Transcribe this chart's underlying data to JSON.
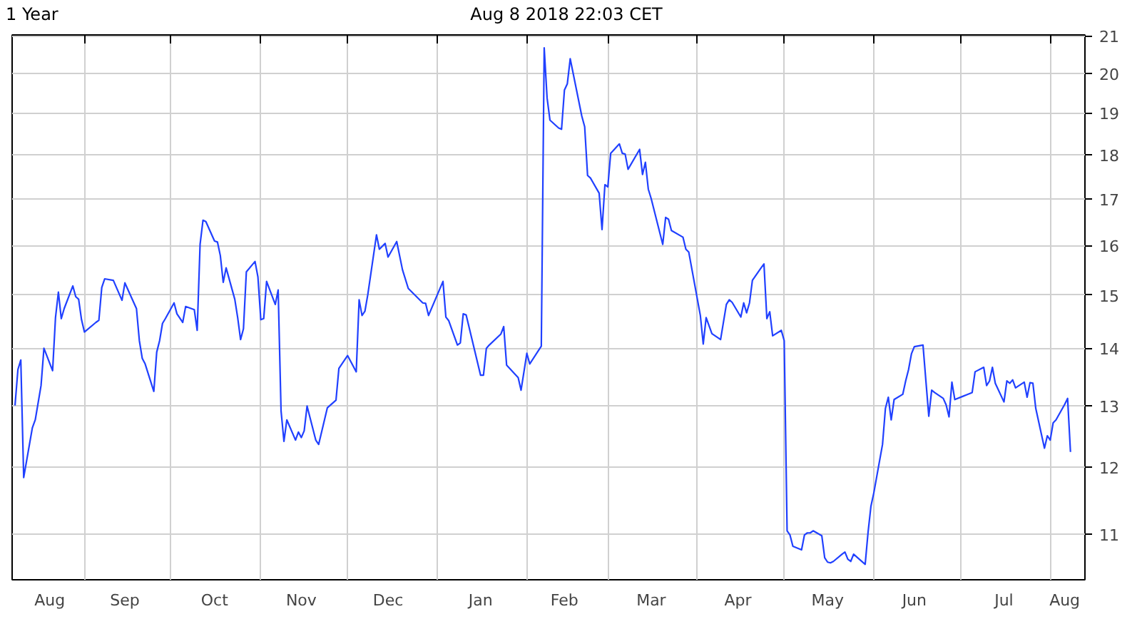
{
  "chart_data": {
    "type": "line",
    "title": "1 Year",
    "annotations": [
      "Aug 8 2018 22:03 CET"
    ],
    "x": [
      "2017-08-08",
      "2017-08-09",
      "2017-08-10",
      "2017-08-11",
      "2017-08-14",
      "2017-08-15",
      "2017-08-17",
      "2017-08-18",
      "2017-08-21",
      "2017-08-22",
      "2017-08-23",
      "2017-08-24",
      "2017-08-25",
      "2017-08-28",
      "2017-08-29",
      "2017-08-30",
      "2017-08-31",
      "2017-09-01",
      "2017-09-05",
      "2017-09-06",
      "2017-09-07",
      "2017-09-08",
      "2017-09-11",
      "2017-09-14",
      "2017-09-15",
      "2017-09-19",
      "2017-09-20",
      "2017-09-21",
      "2017-09-22",
      "2017-09-25",
      "2017-09-26",
      "2017-09-27",
      "2017-09-28",
      "2017-09-29",
      "2017-10-02",
      "2017-10-03",
      "2017-10-05",
      "2017-10-06",
      "2017-10-09",
      "2017-10-10",
      "2017-10-11",
      "2017-10-12",
      "2017-10-13",
      "2017-10-16",
      "2017-10-17",
      "2017-10-18",
      "2017-10-19",
      "2017-10-20",
      "2017-10-23",
      "2017-10-24",
      "2017-10-25",
      "2017-10-26",
      "2017-10-27",
      "2017-10-30",
      "2017-10-31",
      "2017-11-01",
      "2017-11-02",
      "2017-11-03",
      "2017-11-06",
      "2017-11-07",
      "2017-11-08",
      "2017-11-09",
      "2017-11-10",
      "2017-11-13",
      "2017-11-14",
      "2017-11-15",
      "2017-11-16",
      "2017-11-17",
      "2017-11-20",
      "2017-11-21",
      "2017-11-24",
      "2017-11-27",
      "2017-11-28",
      "2017-12-01",
      "2017-12-04",
      "2017-12-05",
      "2017-12-06",
      "2017-12-07",
      "2017-12-08",
      "2017-12-11",
      "2017-12-12",
      "2017-12-14",
      "2017-12-15",
      "2017-12-18",
      "2017-12-20",
      "2017-12-22",
      "2017-12-27",
      "2017-12-28",
      "2017-12-29",
      "2018-01-03",
      "2018-01-04",
      "2018-01-05",
      "2018-01-08",
      "2018-01-09",
      "2018-01-10",
      "2018-01-11",
      "2018-01-16",
      "2018-01-17",
      "2018-01-18",
      "2018-01-19",
      "2018-01-23",
      "2018-01-24",
      "2018-01-25",
      "2018-01-29",
      "2018-01-30",
      "2018-02-01",
      "2018-02-02",
      "2018-02-06",
      "2018-02-07",
      "2018-02-08",
      "2018-02-09",
      "2018-02-12",
      "2018-02-13",
      "2018-02-14",
      "2018-02-15",
      "2018-02-16",
      "2018-02-20",
      "2018-02-21",
      "2018-02-22",
      "2018-02-23",
      "2018-02-26",
      "2018-02-27",
      "2018-02-28",
      "2018-03-01",
      "2018-03-02",
      "2018-03-05",
      "2018-03-06",
      "2018-03-07",
      "2018-03-08",
      "2018-03-12",
      "2018-03-13",
      "2018-03-14",
      "2018-03-15",
      "2018-03-16",
      "2018-03-20",
      "2018-03-21",
      "2018-03-22",
      "2018-03-23",
      "2018-03-27",
      "2018-03-28",
      "2018-03-29",
      "2018-04-02",
      "2018-04-03",
      "2018-04-04",
      "2018-04-06",
      "2018-04-09",
      "2018-04-11",
      "2018-04-12",
      "2018-04-13",
      "2018-04-16",
      "2018-04-17",
      "2018-04-18",
      "2018-04-19",
      "2018-04-20",
      "2018-04-23",
      "2018-04-24",
      "2018-04-25",
      "2018-04-26",
      "2018-04-27",
      "2018-04-30",
      "2018-05-01",
      "2018-05-02",
      "2018-05-03",
      "2018-05-04",
      "2018-05-07",
      "2018-05-08",
      "2018-05-09",
      "2018-05-10",
      "2018-05-11",
      "2018-05-14",
      "2018-05-15",
      "2018-05-16",
      "2018-05-17",
      "2018-05-18",
      "2018-05-21",
      "2018-05-22",
      "2018-05-23",
      "2018-05-24",
      "2018-05-25",
      "2018-05-29",
      "2018-05-30",
      "2018-05-31",
      "2018-06-01",
      "2018-06-04",
      "2018-06-05",
      "2018-06-06",
      "2018-06-07",
      "2018-06-08",
      "2018-06-11",
      "2018-06-12",
      "2018-06-13",
      "2018-06-14",
      "2018-06-15",
      "2018-06-18",
      "2018-06-19",
      "2018-06-20",
      "2018-06-21",
      "2018-06-22",
      "2018-06-25",
      "2018-06-26",
      "2018-06-27",
      "2018-06-28",
      "2018-06-29",
      "2018-07-02",
      "2018-07-03",
      "2018-07-05",
      "2018-07-06",
      "2018-07-09",
      "2018-07-10",
      "2018-07-11",
      "2018-07-12",
      "2018-07-13",
      "2018-07-16",
      "2018-07-17",
      "2018-07-18",
      "2018-07-19",
      "2018-07-20",
      "2018-07-23",
      "2018-07-24",
      "2018-07-25",
      "2018-07-26",
      "2018-07-27",
      "2018-07-30",
      "2018-07-31",
      "2018-08-01",
      "2018-08-02",
      "2018-08-03",
      "2018-08-06",
      "2018-08-07",
      "2018-08-08"
    ],
    "series": [
      {
        "color": "#2040ff",
        "values": [
          13.0,
          13.62,
          13.79,
          11.84,
          12.63,
          12.76,
          13.34,
          14.0,
          13.6,
          14.57,
          15.06,
          14.55,
          14.74,
          15.18,
          14.97,
          14.92,
          14.53,
          14.3,
          14.48,
          14.52,
          15.15,
          15.32,
          15.29,
          14.9,
          15.24,
          14.74,
          14.14,
          13.82,
          13.72,
          13.24,
          13.93,
          14.14,
          14.46,
          14.55,
          14.85,
          14.64,
          14.48,
          14.78,
          14.72,
          14.33,
          16.02,
          16.53,
          16.5,
          16.09,
          16.07,
          15.79,
          15.25,
          15.54,
          14.92,
          14.57,
          14.16,
          14.36,
          15.46,
          15.67,
          15.36,
          14.53,
          14.55,
          15.27,
          14.82,
          15.1,
          12.91,
          12.41,
          12.76,
          12.43,
          12.56,
          12.47,
          12.58,
          12.99,
          12.43,
          12.36,
          12.96,
          13.09,
          13.64,
          13.87,
          13.58,
          14.91,
          14.61,
          14.69,
          15.01,
          16.22,
          15.92,
          16.04,
          15.76,
          16.08,
          15.5,
          15.13,
          14.85,
          14.84,
          14.61,
          15.27,
          14.58,
          14.51,
          14.06,
          14.1,
          14.64,
          14.62,
          13.52,
          13.52,
          14.0,
          14.06,
          14.26,
          14.4,
          13.7,
          13.48,
          13.26,
          13.91,
          13.72,
          14.04,
          20.67,
          19.37,
          18.82,
          18.63,
          18.6,
          19.57,
          19.73,
          20.38,
          18.92,
          18.66,
          17.52,
          17.46,
          17.12,
          16.33,
          17.31,
          17.26,
          18.03,
          18.25,
          18.03,
          18.01,
          17.66,
          18.12,
          17.54,
          17.82,
          17.21,
          17.0,
          16.02,
          16.59,
          16.55,
          16.31,
          16.17,
          15.92,
          15.86,
          14.61,
          14.08,
          14.57,
          14.27,
          14.16,
          14.82,
          14.91,
          14.86,
          14.58,
          14.85,
          14.66,
          14.85,
          15.29,
          15.54,
          15.62,
          14.55,
          14.68,
          14.23,
          14.33,
          14.14,
          11.05,
          10.99,
          10.83,
          10.78,
          10.99,
          11.02,
          11.02,
          11.05,
          10.98,
          10.67,
          10.61,
          10.6,
          10.62,
          10.72,
          10.75,
          10.65,
          10.62,
          10.72,
          10.58,
          11.03,
          11.41,
          11.61,
          12.36,
          12.95,
          13.14,
          12.76,
          13.1,
          13.19,
          13.42,
          13.62,
          13.9,
          14.03,
          14.06,
          13.42,
          12.82,
          13.26,
          13.22,
          13.12,
          13.01,
          12.81,
          13.4,
          13.1,
          13.16,
          13.18,
          13.22,
          13.58,
          13.66,
          13.34,
          13.42,
          13.66,
          13.38,
          13.06,
          13.42,
          13.38,
          13.44,
          13.3,
          13.4,
          13.14,
          13.39,
          13.38,
          12.95,
          12.3,
          12.5,
          12.43,
          12.71,
          12.76,
          13.02,
          13.12,
          12.24
        ]
      }
    ],
    "xlim": [
      "2017-08-07",
      "2018-08-13"
    ],
    "xticks": [
      {
        "value": "2017-08-20",
        "label": "Aug"
      },
      {
        "value": "2017-09-01",
        "label": null
      },
      {
        "value": "2017-09-15",
        "label": "Sep"
      },
      {
        "value": "2017-10-01",
        "label": null
      },
      {
        "value": "2017-10-16",
        "label": "Oct"
      },
      {
        "value": "2017-11-01",
        "label": null
      },
      {
        "value": "2017-11-15",
        "label": "Nov"
      },
      {
        "value": "2017-12-01",
        "label": null
      },
      {
        "value": "2017-12-15",
        "label": "Dec"
      },
      {
        "value": "2018-01-01",
        "label": null
      },
      {
        "value": "2018-01-16",
        "label": "Jan"
      },
      {
        "value": "2018-02-01",
        "label": null
      },
      {
        "value": "2018-02-14",
        "label": "Feb"
      },
      {
        "value": "2018-03-01",
        "label": null
      },
      {
        "value": "2018-03-16",
        "label": "Mar"
      },
      {
        "value": "2018-04-01",
        "label": null
      },
      {
        "value": "2018-04-15",
        "label": "Apr"
      },
      {
        "value": "2018-05-01",
        "label": null
      },
      {
        "value": "2018-05-16",
        "label": "May"
      },
      {
        "value": "2018-06-01",
        "label": null
      },
      {
        "value": "2018-06-15",
        "label": "Jun"
      },
      {
        "value": "2018-07-01",
        "label": null
      },
      {
        "value": "2018-07-16",
        "label": "Jul"
      },
      {
        "value": "2018-08-01",
        "label": null
      },
      {
        "value": "2018-08-06",
        "label": "Aug"
      }
    ],
    "ylim": [
      10.37,
      21.02
    ],
    "yticks": [
      11,
      12,
      13,
      14,
      15,
      16,
      17,
      18,
      19,
      20,
      21
    ],
    "log": "y",
    "grid": true,
    "line_style": "solid"
  }
}
